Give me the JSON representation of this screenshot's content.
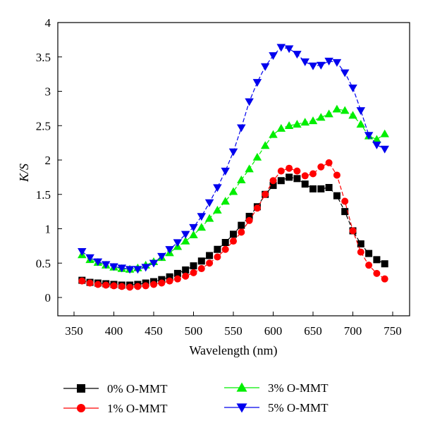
{
  "chart_data": {
    "type": "line",
    "xlabel": "Wavelength (nm)",
    "ylabel": "K/S",
    "xlim": [
      350,
      750
    ],
    "ylim": [
      0,
      4
    ],
    "xticks": [
      350,
      400,
      450,
      500,
      550,
      600,
      650,
      700,
      750
    ],
    "yticks": [
      0,
      0.5,
      1,
      1.5,
      2,
      2.5,
      3,
      3.5,
      4
    ],
    "xtick_labels": [
      "350",
      "400",
      "450",
      "500",
      "550",
      "600",
      "650",
      "700",
      "750"
    ],
    "ytick_labels": [
      "0",
      "0.5",
      "1",
      "1.5",
      "2",
      "2.5",
      "3",
      "3.5",
      "4"
    ],
    "grid": false,
    "legend_position": "bottom",
    "x": [
      360,
      370,
      380,
      390,
      400,
      410,
      420,
      430,
      440,
      450,
      460,
      470,
      480,
      490,
      500,
      510,
      520,
      530,
      540,
      550,
      560,
      570,
      580,
      590,
      600,
      610,
      620,
      630,
      640,
      650,
      660,
      670,
      680,
      690,
      700,
      710,
      720,
      730,
      740
    ],
    "series": [
      {
        "name": "0% O-MMT",
        "color": "#000000",
        "marker": "square",
        "values": [
          0.25,
          0.22,
          0.21,
          0.2,
          0.19,
          0.18,
          0.18,
          0.19,
          0.21,
          0.23,
          0.26,
          0.3,
          0.35,
          0.4,
          0.46,
          0.53,
          0.61,
          0.7,
          0.8,
          0.92,
          1.05,
          1.18,
          1.32,
          1.5,
          1.63,
          1.7,
          1.75,
          1.73,
          1.65,
          1.58,
          1.58,
          1.6,
          1.48,
          1.25,
          0.97,
          0.78,
          0.64,
          0.55,
          0.49
        ]
      },
      {
        "name": "1% O-MMT",
        "color": "#ff0000",
        "marker": "circle",
        "values": [
          0.24,
          0.21,
          0.19,
          0.18,
          0.17,
          0.16,
          0.15,
          0.16,
          0.17,
          0.19,
          0.21,
          0.24,
          0.27,
          0.31,
          0.36,
          0.42,
          0.5,
          0.59,
          0.7,
          0.82,
          0.95,
          1.12,
          1.3,
          1.5,
          1.7,
          1.84,
          1.88,
          1.84,
          1.77,
          1.8,
          1.9,
          1.96,
          1.78,
          1.4,
          0.97,
          0.66,
          0.47,
          0.35,
          0.27
        ]
      },
      {
        "name": "3% O-MMT",
        "color": "#00ee00",
        "marker": "triangle-up",
        "values": [
          0.62,
          0.55,
          0.51,
          0.47,
          0.44,
          0.42,
          0.41,
          0.43,
          0.47,
          0.52,
          0.58,
          0.65,
          0.74,
          0.82,
          0.91,
          1.02,
          1.15,
          1.27,
          1.4,
          1.54,
          1.71,
          1.87,
          2.04,
          2.21,
          2.37,
          2.46,
          2.5,
          2.52,
          2.55,
          2.57,
          2.62,
          2.67,
          2.74,
          2.72,
          2.65,
          2.52,
          2.35,
          2.3,
          2.38
        ]
      },
      {
        "name": "5% O-MMT",
        "color": "#0000ee",
        "marker": "triangle-down",
        "values": [
          0.67,
          0.58,
          0.52,
          0.48,
          0.45,
          0.43,
          0.41,
          0.41,
          0.44,
          0.5,
          0.6,
          0.7,
          0.8,
          0.92,
          1.02,
          1.18,
          1.38,
          1.6,
          1.84,
          2.12,
          2.47,
          2.85,
          3.13,
          3.36,
          3.52,
          3.64,
          3.62,
          3.54,
          3.43,
          3.37,
          3.38,
          3.44,
          3.42,
          3.27,
          3.05,
          2.72,
          2.36,
          2.22,
          2.16
        ]
      }
    ]
  }
}
